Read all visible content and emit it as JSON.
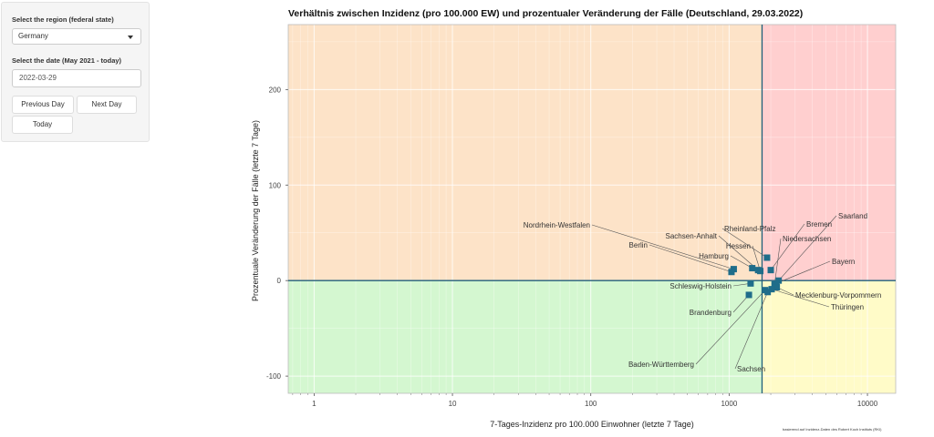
{
  "sidebar": {
    "region_label": "Select the region (federal state)",
    "region_value": "Germany",
    "date_label": "Select the date (May 2021 - today)",
    "date_value": "2022-03-29",
    "prev_label": "Previous Day",
    "next_label": "Next Day",
    "today_label": "Today"
  },
  "chart_data": {
    "type": "scatter",
    "title": "Verhältnis zwischen Inzidenz (pro 100.000 EW) und prozentualer Veränderung der Fälle (Deutschland, 29.03.2022)",
    "xlabel": "7-Tages-Inzidenz pro 100.000 Einwohner (letzte 7 Tage)",
    "ylabel": "Prozentuale Veränderung der Fälle (letzte 7 Tage)",
    "x_scale": "log",
    "xlim": [
      0.65,
      16000
    ],
    "ylim": [
      -118,
      268
    ],
    "x_ticks": [
      1,
      10,
      100,
      1000,
      10000
    ],
    "x_tick_labels": [
      "1",
      "10",
      "100",
      "1000",
      "10000"
    ],
    "y_ticks": [
      -100,
      0,
      100,
      200
    ],
    "y_tick_labels": [
      "-100",
      "0",
      "100",
      "200"
    ],
    "reference_x": 1730,
    "reference_y": 0,
    "quadrant_colors": {
      "top_left": "#fde3c8",
      "top_right": "#ffcfcf",
      "bottom_left": "#d4f7d0",
      "bottom_right": "#fffbc8"
    },
    "marker_color": "#1f6d8a",
    "points": [
      {
        "label": "Nordrhein-Westfalen",
        "x": 1080,
        "y": 12
      },
      {
        "label": "Berlin",
        "x": 1040,
        "y": 9
      },
      {
        "label": "Hamburg",
        "x": 1470,
        "y": 13
      },
      {
        "label": "Sachsen-Anhalt",
        "x": 1620,
        "y": 11
      },
      {
        "label": "Hessen",
        "x": 1680,
        "y": 10
      },
      {
        "label": "Rheinland-Pfalz",
        "x": 1880,
        "y": 24
      },
      {
        "label": "Bremen",
        "x": 2000,
        "y": 11
      },
      {
        "label": "Saarland",
        "x": 2280,
        "y": 0
      },
      {
        "label": "Niedersachsen",
        "x": 2130,
        "y": -4
      },
      {
        "label": "Bayern",
        "x": 2190,
        "y": -3
      },
      {
        "label": "Schleswig-Holstein",
        "x": 1430,
        "y": -3
      },
      {
        "label": "Brandenburg",
        "x": 1390,
        "y": -15
      },
      {
        "label": "Mecklenburg-Vorpommern",
        "x": 2210,
        "y": -7
      },
      {
        "label": "Thüringen",
        "x": 2030,
        "y": -9
      },
      {
        "label": "Baden-Württemberg",
        "x": 1820,
        "y": -10
      },
      {
        "label": "Sachsen",
        "x": 1900,
        "y": -12
      }
    ],
    "source_note": "basierend auf Inzidenz-Daten des Robert Koch Instituts (RKI)"
  }
}
